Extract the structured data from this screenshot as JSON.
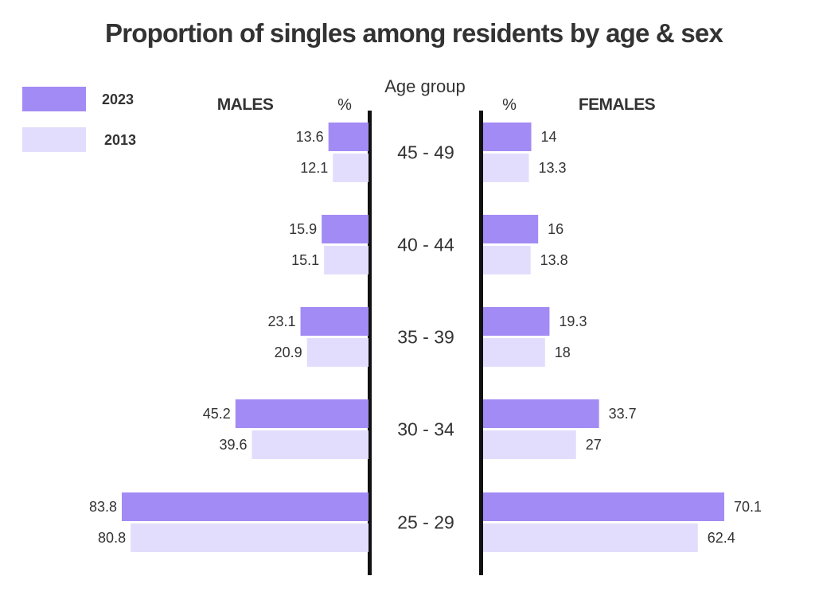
{
  "chart_data": {
    "type": "bar",
    "orientation": "horizontal-diverging",
    "title": "Proportion of singles among residents by age & sex",
    "category_axis_title": "Age group",
    "unit": "%",
    "left_group": "MALES",
    "right_group": "FEMALES",
    "categories": [
      "45 - 49",
      "40 - 44",
      "35 - 39",
      "30 - 34",
      "25 - 29"
    ],
    "series": [
      {
        "name": "2023",
        "color": "#a38bf5",
        "males": [
          13.6,
          15.9,
          23.1,
          45.2,
          83.8
        ],
        "females": [
          14,
          16,
          19.3,
          33.7,
          70.1
        ]
      },
      {
        "name": "2013",
        "color": "#e2ddfc",
        "males": [
          12.1,
          15.1,
          20.9,
          39.6,
          80.8
        ],
        "females": [
          13.3,
          13.8,
          18,
          27,
          62.4
        ]
      }
    ],
    "legend_position": "top-left",
    "grid": false
  }
}
